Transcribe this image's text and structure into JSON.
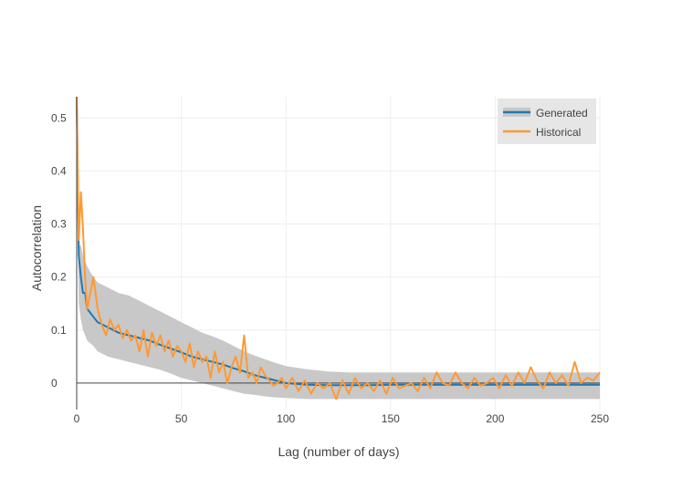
{
  "chart_data": {
    "type": "line",
    "xlabel": "Lag (number of days)",
    "ylabel": "Autocorrelation",
    "xlim": [
      0,
      250
    ],
    "ylim": [
      -0.05,
      0.54
    ],
    "x_ticks": [
      0,
      50,
      100,
      150,
      200,
      250
    ],
    "y_ticks": [
      0,
      0.1,
      0.2,
      0.3,
      0.4,
      0.5
    ],
    "x_tick_labels": [
      "0",
      "50",
      "100",
      "150",
      "200",
      "250"
    ],
    "y_tick_labels": [
      "0",
      "0.1",
      "0.2",
      "0.3",
      "0.4",
      "0.5"
    ],
    "grid": true,
    "legend_position": "top-right",
    "colors": {
      "generated": "#1f77b4",
      "historical": "#ff9933",
      "band": "#c8c8c8",
      "zero_line": "#444444",
      "grid": "#eeeeee",
      "legend_bg": "#e6e6e6"
    },
    "series": [
      {
        "name": "Generated",
        "x": [
          0,
          1,
          2,
          3,
          4,
          5,
          8,
          10,
          15,
          20,
          25,
          30,
          35,
          40,
          45,
          50,
          55,
          60,
          65,
          70,
          75,
          80,
          85,
          90,
          95,
          100,
          110,
          120,
          130,
          140,
          150,
          160,
          170,
          180,
          190,
          200,
          210,
          220,
          230,
          240,
          250
        ],
        "y": [
          0.54,
          0.24,
          0.2,
          0.17,
          0.17,
          0.14,
          0.125,
          0.115,
          0.105,
          0.095,
          0.09,
          0.085,
          0.08,
          0.072,
          0.065,
          0.058,
          0.05,
          0.045,
          0.04,
          0.035,
          0.028,
          0.022,
          0.015,
          0.01,
          0.005,
          0.0,
          -0.003,
          -0.004,
          -0.004,
          -0.004,
          -0.003,
          -0.003,
          -0.003,
          -0.003,
          -0.003,
          -0.003,
          -0.003,
          -0.003,
          -0.003,
          -0.003,
          -0.003
        ]
      },
      {
        "name": "Historical",
        "x": [
          0,
          1,
          2,
          3,
          4,
          5,
          6,
          8,
          10,
          12,
          14,
          16,
          18,
          20,
          22,
          24,
          26,
          28,
          30,
          32,
          34,
          36,
          38,
          40,
          42,
          44,
          46,
          48,
          50,
          52,
          54,
          56,
          58,
          60,
          62,
          64,
          66,
          68,
          70,
          72,
          74,
          76,
          78,
          80,
          82,
          84,
          86,
          88,
          90,
          92,
          94,
          96,
          98,
          100,
          103,
          106,
          109,
          112,
          115,
          118,
          121,
          124,
          127,
          130,
          133,
          136,
          139,
          142,
          145,
          148,
          151,
          154,
          157,
          160,
          163,
          166,
          169,
          172,
          175,
          178,
          181,
          184,
          187,
          190,
          193,
          196,
          199,
          202,
          205,
          208,
          211,
          214,
          217,
          220,
          223,
          226,
          229,
          232,
          235,
          238,
          241,
          244,
          247,
          250
        ],
        "y": [
          0.54,
          0.27,
          0.36,
          0.29,
          0.2,
          0.14,
          0.16,
          0.2,
          0.14,
          0.11,
          0.09,
          0.12,
          0.1,
          0.11,
          0.085,
          0.1,
          0.08,
          0.09,
          0.06,
          0.1,
          0.05,
          0.095,
          0.07,
          0.09,
          0.06,
          0.08,
          0.05,
          0.07,
          0.06,
          0.04,
          0.075,
          0.03,
          0.06,
          0.04,
          0.05,
          0.01,
          0.06,
          0.02,
          0.04,
          0.0,
          0.03,
          0.05,
          0.02,
          0.09,
          0.01,
          0.02,
          0.0,
          0.03,
          0.015,
          0.005,
          -0.005,
          0.0,
          0.01,
          -0.01,
          0.01,
          -0.015,
          0.005,
          -0.02,
          0.0,
          -0.01,
          0.0,
          -0.03,
          0.005,
          -0.02,
          0.01,
          -0.01,
          0.0,
          -0.015,
          0.005,
          -0.02,
          0.01,
          -0.01,
          -0.005,
          0.0,
          -0.015,
          0.01,
          -0.01,
          0.02,
          0.0,
          -0.005,
          0.02,
          0.0,
          -0.01,
          0.01,
          -0.005,
          0.0,
          0.01,
          -0.01,
          0.015,
          -0.005,
          0.02,
          0.0,
          0.03,
          0.005,
          -0.01,
          0.02,
          0.0,
          0.015,
          -0.005,
          0.04,
          0.0,
          0.01,
          0.005,
          0.02
        ]
      }
    ],
    "band": {
      "name": "Generated",
      "x": [
        0,
        1,
        2,
        3,
        5,
        8,
        10,
        15,
        20,
        25,
        30,
        35,
        40,
        45,
        50,
        55,
        60,
        65,
        70,
        75,
        80,
        85,
        90,
        95,
        100,
        110,
        120,
        130,
        140,
        150,
        160,
        170,
        180,
        190,
        200,
        210,
        220,
        230,
        240,
        250
      ],
      "upper": [
        0.54,
        0.26,
        0.26,
        0.24,
        0.22,
        0.2,
        0.19,
        0.18,
        0.17,
        0.165,
        0.155,
        0.145,
        0.135,
        0.125,
        0.115,
        0.105,
        0.095,
        0.088,
        0.08,
        0.07,
        0.06,
        0.052,
        0.045,
        0.038,
        0.032,
        0.026,
        0.022,
        0.02,
        0.02,
        0.02,
        0.02,
        0.02,
        0.02,
        0.02,
        0.02,
        0.02,
        0.02,
        0.02,
        0.02,
        0.02
      ],
      "lower": [
        0.5,
        0.15,
        0.12,
        0.1,
        0.08,
        0.07,
        0.06,
        0.05,
        0.045,
        0.04,
        0.035,
        0.03,
        0.025,
        0.018,
        0.01,
        0.005,
        0.0,
        -0.005,
        -0.01,
        -0.015,
        -0.02,
        -0.022,
        -0.025,
        -0.027,
        -0.028,
        -0.03,
        -0.03,
        -0.03,
        -0.03,
        -0.03,
        -0.03,
        -0.03,
        -0.03,
        -0.03,
        -0.03,
        -0.03,
        -0.03,
        -0.03,
        -0.03,
        -0.03
      ]
    }
  }
}
